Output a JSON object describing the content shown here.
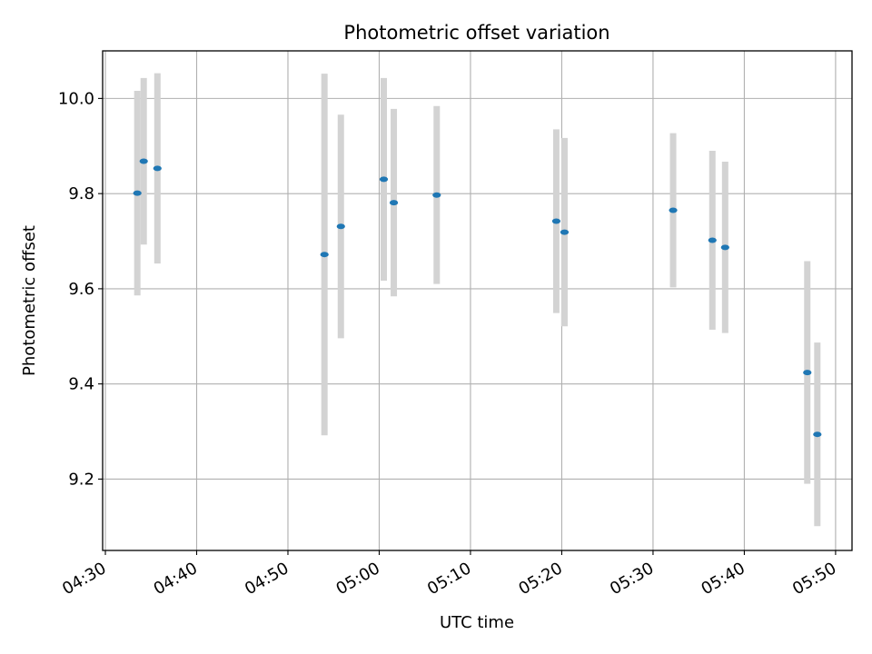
{
  "chart_data": {
    "type": "scatter",
    "title": "Photometric offset variation",
    "xlabel": "UTC time",
    "ylabel": "Photometric offset",
    "xlim": [
      "04:29.7",
      "05:51.8"
    ],
    "ylim": [
      9.05,
      10.1
    ],
    "x_ticks": [
      "04:30",
      "04:40",
      "04:50",
      "05:00",
      "05:10",
      "05:20",
      "05:30",
      "05:40",
      "05:50"
    ],
    "y_ticks": [
      "9.2",
      "9.4",
      "9.6",
      "9.8",
      "10.0"
    ],
    "grid": true,
    "colors": {
      "point": "#1f77b4",
      "errorbar": "#d3d3d3",
      "grid": "#b0b0b0"
    },
    "points": [
      {
        "x": "04:33.5",
        "y": 9.801,
        "yerr": 0.215
      },
      {
        "x": "04:34.2",
        "y": 9.868,
        "yerr": 0.175
      },
      {
        "x": "04:35.7",
        "y": 9.853,
        "yerr": 0.2
      },
      {
        "x": "04:54.0",
        "y": 9.672,
        "yerr": 0.38
      },
      {
        "x": "04:55.8",
        "y": 9.731,
        "yerr": 0.235
      },
      {
        "x": "05:00.5",
        "y": 9.83,
        "yerr": 0.213
      },
      {
        "x": "05:01.6",
        "y": 9.781,
        "yerr": 0.197
      },
      {
        "x": "05:06.3",
        "y": 9.797,
        "yerr": 0.187
      },
      {
        "x": "05:19.4",
        "y": 9.742,
        "yerr": 0.193
      },
      {
        "x": "05:20.3",
        "y": 9.719,
        "yerr": 0.198
      },
      {
        "x": "05:32.2",
        "y": 9.765,
        "yerr": 0.162
      },
      {
        "x": "05:36.5",
        "y": 9.702,
        "yerr": 0.188
      },
      {
        "x": "05:37.9",
        "y": 9.687,
        "yerr": 0.18
      },
      {
        "x": "05:46.9",
        "y": 9.424,
        "yerr": 0.234
      },
      {
        "x": "05:48.0",
        "y": 9.294,
        "yerr": 0.193
      }
    ]
  }
}
